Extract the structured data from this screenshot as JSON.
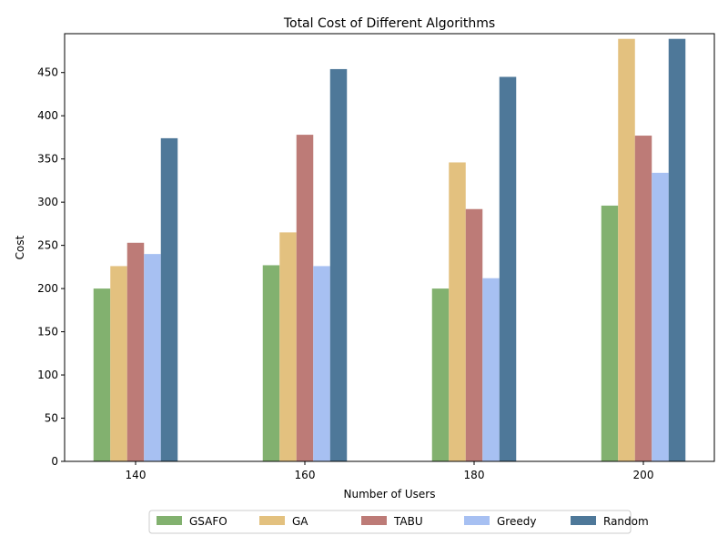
{
  "chart_data": {
    "type": "bar",
    "title": "Total Cost of Different Algorithms",
    "xlabel": "Number of Users",
    "ylabel": "Cost",
    "categories": [
      "140",
      "160",
      "180",
      "200"
    ],
    "ylim": [
      0,
      495
    ],
    "yticks": [
      "0",
      "50",
      "100",
      "150",
      "200",
      "250",
      "300",
      "350",
      "400",
      "450"
    ],
    "grid": false,
    "legend_position": "bottom-center",
    "series": [
      {
        "name": "GSAFO",
        "color": "#82b16f",
        "values": [
          200,
          227,
          200,
          296
        ]
      },
      {
        "name": "GA",
        "color": "#e3c17f",
        "values": [
          226,
          265,
          346,
          489
        ]
      },
      {
        "name": "TABU",
        "color": "#bd7b77",
        "values": [
          253,
          378,
          292,
          377
        ]
      },
      {
        "name": "Greedy",
        "color": "#a7c0f2",
        "values": [
          240,
          226,
          212,
          334
        ]
      },
      {
        "name": "Random",
        "color": "#4e7899",
        "values": [
          374,
          454,
          445,
          489
        ]
      }
    ]
  }
}
